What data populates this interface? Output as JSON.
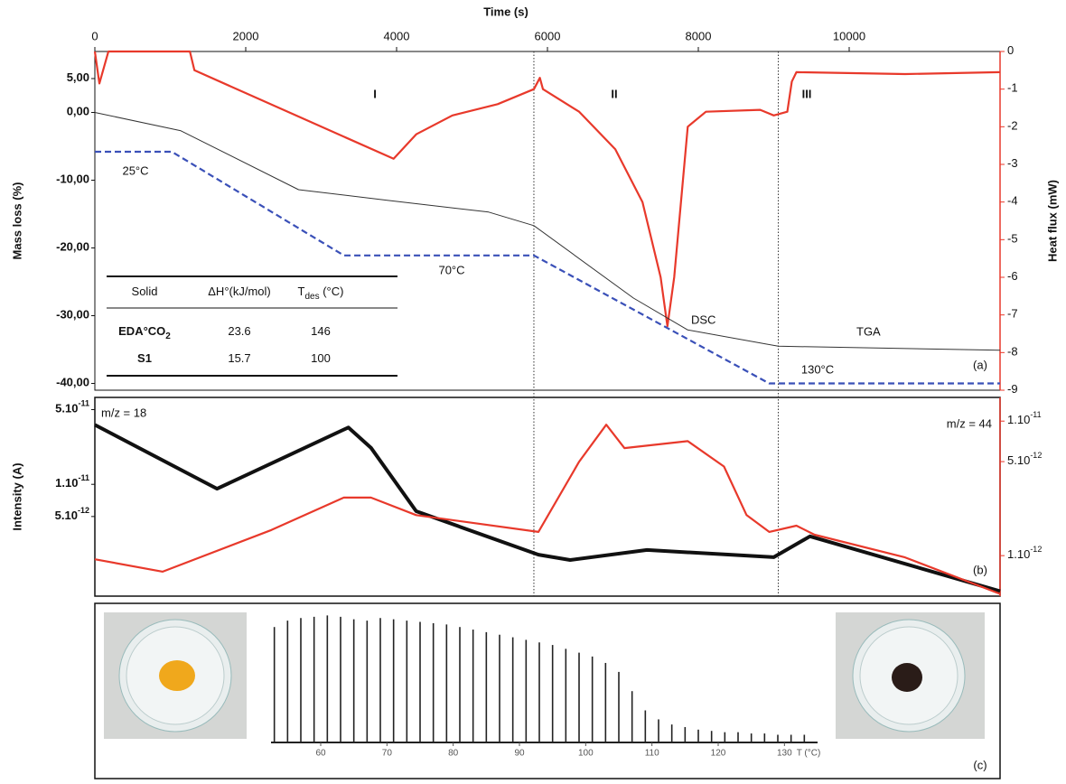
{
  "chart_data": [
    {
      "type": "line",
      "x_label": "Time (s)",
      "y_label": "Mass loss (%)",
      "y2_label": "Heat flux (mW)",
      "xlim": [
        0,
        12000
      ],
      "xticks": [
        0,
        2000,
        4000,
        6000,
        8000,
        10000
      ],
      "ylim": [
        -41,
        9
      ],
      "yticks": [
        {
          "value": 5,
          "label": "5,00"
        },
        {
          "value": 0,
          "label": "0,00"
        },
        {
          "value": -10,
          "label": "-10,00"
        },
        {
          "value": -20,
          "label": "-20,00"
        },
        {
          "value": -30,
          "label": "-30,00"
        },
        {
          "value": -40,
          "label": "-40,00"
        }
      ],
      "y2lim": [
        -9,
        0
      ],
      "y2ticks": [
        0,
        -1,
        -2,
        -3,
        -4,
        -5,
        -6,
        -7,
        -8,
        -9
      ],
      "y2_color": "#e8392b",
      "vlines": [
        5820,
        9060
      ],
      "series": [
        {
          "name": "DSC",
          "color": "#e8392b",
          "axis": "y2",
          "style": "solid",
          "x": [
            0,
            60,
            180,
            1260,
            1320,
            3960,
            4260,
            4740,
            5340,
            5820,
            5900,
            5940,
            6420,
            6900,
            7260,
            7500,
            7590,
            7680,
            7860,
            8100,
            8820,
            9000,
            9180,
            9240,
            9300,
            10740,
            12000
          ],
          "values": [
            0,
            -0.85,
            0,
            0,
            -0.5,
            -2.85,
            -2.2,
            -1.7,
            -1.4,
            -1.0,
            -0.7,
            -1.0,
            -1.6,
            -2.6,
            -4.0,
            -6.0,
            -7.3,
            -6.0,
            -2.0,
            -1.6,
            -1.55,
            -1.7,
            -1.6,
            -0.8,
            -0.55,
            -0.6,
            -0.55
          ]
        },
        {
          "name": "TGA",
          "color": "#333333",
          "style": "thin",
          "x": [
            0,
            1140,
            2700,
            3900,
            5220,
            5820,
            7140,
            7860,
            9060,
            12000
          ],
          "values": [
            0,
            -2.7,
            -11.4,
            -13.0,
            -14.7,
            -16.7,
            -27.4,
            -32.1,
            -34.5,
            -35.1
          ]
        },
        {
          "color": "#3a50b8",
          "style": "dashed",
          "x": [
            0,
            1020,
            3300,
            5820,
            8940,
            12000
          ],
          "values": [
            -5.8,
            -5.8,
            -21.1,
            -21.1,
            -40,
            -40
          ]
        }
      ],
      "annotations": [
        "I",
        "II",
        "III",
        "(a)",
        "25°C",
        "70°C",
        "130°C"
      ]
    },
    {
      "type": "line",
      "y_label": "Intensity (A)",
      "log": true,
      "xlim": [
        0,
        12000
      ],
      "ylim": [
        9e-13,
        6.5e-11
      ],
      "yticks": [
        {
          "value": 5e-11,
          "label": "5.10",
          "exp": "-11"
        },
        {
          "value": 1e-11,
          "label": "1.10",
          "exp": "-11"
        },
        {
          "value": 5e-12,
          "label": "5.10",
          "exp": "-12"
        }
      ],
      "y2lim": [
        5e-13,
        1.5e-11
      ],
      "y2ticks": [
        {
          "value": 1e-11,
          "label": "1.10",
          "exp": "-11"
        },
        {
          "value": 5e-12,
          "label": "5.10",
          "exp": "-12"
        },
        {
          "value": 1e-12,
          "label": "1.10",
          "exp": "-12"
        }
      ],
      "y2_color": "#e8392b",
      "series": [
        {
          "name": "m/z = 18",
          "color": "#111111",
          "style": "thick",
          "x": [
            0,
            1620,
            3360,
            3660,
            4260,
            5880,
            6300,
            7320,
            9000,
            9480,
            12000
          ],
          "values": [
            3.6e-11,
            9.1e-12,
            3.4e-11,
            2.2e-11,
            5.6e-12,
            2.2e-12,
            1.96e-12,
            2.43e-12,
            2.08e-12,
            3.26e-12,
            1e-12
          ]
        },
        {
          "name": "m/z = 44",
          "color": "#e8392b",
          "axis": "y2",
          "style": "solid",
          "x": [
            0,
            900,
            2340,
            3300,
            3660,
            4260,
            5880,
            6420,
            6780,
            7020,
            7860,
            8340,
            8640,
            8940,
            9300,
            9540,
            10740,
            12000
          ],
          "values": [
            9.4e-13,
            7.6e-13,
            1.55e-12,
            2.7e-12,
            2.7e-12,
            2e-12,
            1.5e-12,
            5e-12,
            9.4e-12,
            6.3e-12,
            7.1e-12,
            4.6e-12,
            2e-12,
            1.5e-12,
            1.67e-12,
            1.43e-12,
            9.7e-13,
            5.2e-13
          ]
        }
      ],
      "annotations": [
        "(b)"
      ]
    },
    {
      "type": "stem",
      "x_label": "T (°C)",
      "xlim": [
        52.5,
        135
      ],
      "xticks": [
        60,
        70,
        80,
        90,
        100,
        110,
        120,
        130
      ],
      "ylim": [
        0,
        1
      ],
      "series": [
        {
          "color": "#222222",
          "x": [
            53,
            55,
            57,
            59,
            61,
            63,
            65,
            67,
            69,
            71,
            73,
            75,
            77,
            79,
            81,
            83,
            85,
            87,
            89,
            91,
            93,
            95,
            97,
            99,
            101,
            103,
            105,
            107,
            109,
            111,
            113,
            115,
            117,
            119,
            121,
            123,
            125,
            127,
            129,
            131,
            133
          ],
          "values": [
            0.9,
            0.95,
            0.97,
            0.98,
            0.99,
            0.98,
            0.96,
            0.95,
            0.97,
            0.96,
            0.95,
            0.94,
            0.93,
            0.92,
            0.9,
            0.88,
            0.86,
            0.84,
            0.82,
            0.8,
            0.78,
            0.76,
            0.73,
            0.7,
            0.67,
            0.62,
            0.55,
            0.4,
            0.25,
            0.18,
            0.14,
            0.12,
            0.1,
            0.09,
            0.08,
            0.08,
            0.07,
            0.07,
            0.06,
            0.06,
            0.06
          ]
        }
      ],
      "annotations": [
        "(c)"
      ]
    }
  ],
  "table": {
    "header": [
      [
        "Solid"
      ],
      [
        "ΔH°(kJ/mol)"
      ],
      [
        "T",
        "des",
        " (°C)"
      ]
    ],
    "rows": [
      [
        [
          "EDA°CO",
          "2"
        ],
        [
          23.6
        ],
        [
          146
        ]
      ],
      [
        [
          "S1"
        ],
        [
          15.7
        ],
        [
          100
        ]
      ]
    ]
  }
}
